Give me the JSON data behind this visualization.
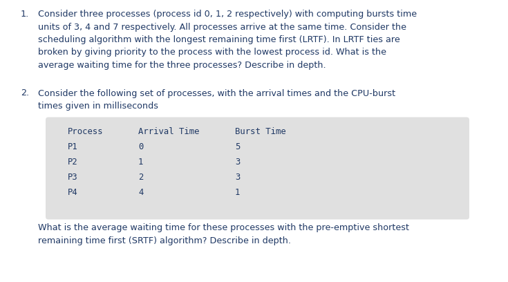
{
  "bg_color": "#ffffff",
  "text_color": "#1f3864",
  "table_bg": "#e0e0e0",
  "table_font": "monospace",
  "body_font": "DejaVu Sans",
  "q1_lines": [
    "Consider three processes (process id 0, 1, 2 respectively) with computing bursts time",
    "units of 3, 4 and 7 respectively. All processes arrive at the same time. Consider the",
    "scheduling algorithm with the longest remaining time first (LRTF). In LRTF ties are",
    "broken by giving priority to the process with the lowest process id. What is the",
    "average waiting time for the three processes? Describe in depth."
  ],
  "q2_intro_lines": [
    "Consider the following set of processes, with the arrival times and the CPU-burst",
    "times given in milliseconds"
  ],
  "table_headers": [
    "Process",
    "Arrival Time",
    "Burst Time"
  ],
  "table_rows": [
    [
      "P1",
      "0",
      "5"
    ],
    [
      "P2",
      "1",
      "3"
    ],
    [
      "P3",
      "2",
      "3"
    ],
    [
      "P4",
      "4",
      "1"
    ]
  ],
  "q2_footer_lines": [
    "What is the average waiting time for these processes with the pre-emptive shortest",
    "remaining time first (SRTF) algorithm? Describe in depth."
  ],
  "label1": "1.",
  "label2": "2.",
  "font_size_body": 9.2,
  "font_size_table": 8.8,
  "fig_width": 7.35,
  "fig_height": 4.08,
  "dpi": 100
}
